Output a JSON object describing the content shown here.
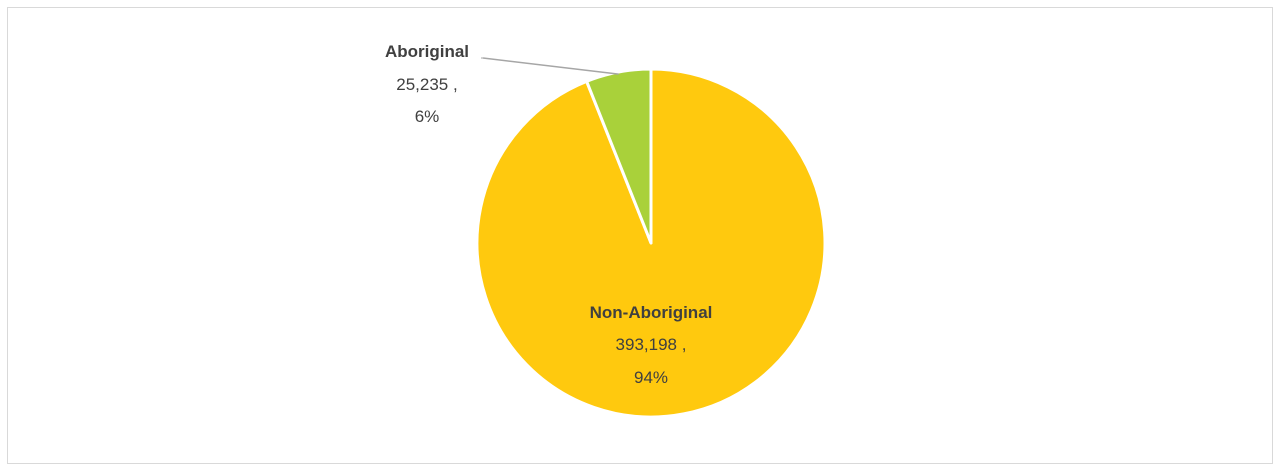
{
  "chart_data": {
    "type": "pie",
    "title": "",
    "slices": [
      {
        "name": "Aboriginal",
        "value": 25235,
        "value_label": "25,235 ,",
        "percent_label": "6%",
        "color": "#a9d13a"
      },
      {
        "name": "Non-Aboriginal",
        "value": 393198,
        "value_label": "393,198 ,",
        "percent_label": "94%",
        "color": "#ffc90e"
      }
    ],
    "legend": "none",
    "leader_line_color": "#a6a6a6",
    "slice_border_color": "#ffffff"
  }
}
